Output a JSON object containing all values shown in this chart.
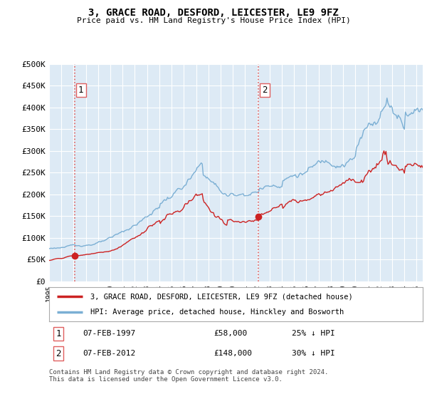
{
  "title": "3, GRACE ROAD, DESFORD, LEICESTER, LE9 9FZ",
  "subtitle": "Price paid vs. HM Land Registry's House Price Index (HPI)",
  "ylim": [
    0,
    500000
  ],
  "yticks": [
    0,
    50000,
    100000,
    150000,
    200000,
    250000,
    300000,
    350000,
    400000,
    450000,
    500000
  ],
  "ytick_labels": [
    "£0",
    "£50K",
    "£100K",
    "£150K",
    "£200K",
    "£250K",
    "£300K",
    "£350K",
    "£400K",
    "£450K",
    "£500K"
  ],
  "hpi_color": "#7bafd4",
  "price_color": "#cc2222",
  "marker_color": "#cc2222",
  "bg_color": "#ddeaf5",
  "grid_color": "#ffffff",
  "legend_label_red": "3, GRACE ROAD, DESFORD, LEICESTER, LE9 9FZ (detached house)",
  "legend_label_blue": "HPI: Average price, detached house, Hinckley and Bosworth",
  "sale1_label": "1",
  "sale1_date": "07-FEB-1997",
  "sale1_price": "£58,000",
  "sale1_hpi": "25% ↓ HPI",
  "sale1_year": 1997.1,
  "sale1_value": 58000,
  "sale2_label": "2",
  "sale2_date": "07-FEB-2012",
  "sale2_price": "£148,000",
  "sale2_hpi": "30% ↓ HPI",
  "sale2_year": 2012.1,
  "sale2_value": 148000,
  "vline_color": "#e06060",
  "footer": "Contains HM Land Registry data © Crown copyright and database right 2024.\nThis data is licensed under the Open Government Licence v3.0.",
  "xlim_left": 1995.0,
  "xlim_right": 2025.5
}
